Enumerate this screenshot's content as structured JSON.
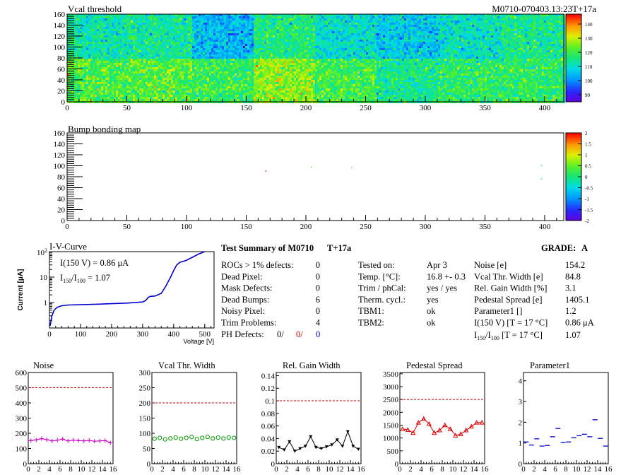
{
  "header": {
    "left_title": "Vcal threshold",
    "right_title": "M0710-070403.13:23T+17a"
  },
  "chart_data": [
    {
      "type": "heatmap",
      "title": "Vcal threshold",
      "x_ticks": [
        "0",
        "50",
        "100",
        "150",
        "200",
        "250",
        "300",
        "350",
        "400"
      ],
      "y_ticks": [
        "0",
        "20",
        "40",
        "60",
        "80",
        "100",
        "120",
        "140",
        "160"
      ],
      "xlim": [
        0,
        416
      ],
      "ylim": [
        0,
        160
      ],
      "z_ticks": [
        "90",
        "100",
        "110",
        "120",
        "130",
        "140"
      ],
      "zlim": [
        85,
        147
      ],
      "roc_means_top": [
        113,
        112,
        114,
        113,
        104,
        99,
        116,
        115,
        110,
        112,
        106,
        109,
        111,
        113,
        115,
        116
      ],
      "roc_means_bottom": [
        121,
        118,
        122,
        120,
        119,
        122,
        126,
        121,
        120,
        117,
        115,
        116,
        118,
        119,
        118,
        114
      ]
    },
    {
      "type": "heatmap",
      "title": "Bump bonding map",
      "x_ticks": [
        "0",
        "50",
        "100",
        "150",
        "200",
        "250",
        "300",
        "350",
        "400"
      ],
      "y_ticks": [
        "0",
        "20",
        "40",
        "60",
        "80",
        "100",
        "120",
        "140",
        "160"
      ],
      "xlim": [
        0,
        416
      ],
      "ylim": [
        0,
        160
      ],
      "z_ticks": [
        "-2",
        "-1.5",
        "-1",
        "-0.5",
        "0",
        "0.5",
        "1",
        "1.5",
        "2"
      ],
      "zlim": [
        -2,
        2
      ],
      "points": [
        {
          "x": 166,
          "y": 90,
          "z": 2
        },
        {
          "x": 204,
          "y": 97,
          "z": 0.3
        },
        {
          "x": 238,
          "y": 96,
          "z": 0.3
        },
        {
          "x": 397,
          "y": 100,
          "z": 0
        },
        {
          "x": 397,
          "y": 76,
          "z": -0.2
        }
      ]
    },
    {
      "type": "line",
      "title": "I-V-Curve",
      "xlabel": "Voltage [V]",
      "ylabel": "Current [μA]",
      "x_ticks": [
        "0",
        "100",
        "200",
        "300",
        "400",
        "500"
      ],
      "y_ticks": [
        "1",
        "10"
      ],
      "y_top_tick": "10",
      "y_top_exp": "2",
      "xlim": [
        0,
        530
      ],
      "ylim_log": [
        0.1,
        100
      ],
      "annotation_1": "I(150 V) = 0.86 μA",
      "annotation_2_pre": "I",
      "annotation_2_sub1": "150",
      "annotation_2_mid": "/I",
      "annotation_2_sub2": "100",
      "annotation_2_post": " =  1.07",
      "x": [
        2,
        8,
        15,
        25,
        40,
        60,
        100,
        150,
        200,
        250,
        300,
        310,
        318,
        325,
        340,
        360,
        375,
        390,
        400,
        410,
        420,
        440,
        460,
        480,
        500
      ],
      "y": [
        0.12,
        0.3,
        0.5,
        0.65,
        0.75,
        0.8,
        0.82,
        0.86,
        0.9,
        0.95,
        1.05,
        1.2,
        1.6,
        1.75,
        1.8,
        2.3,
        4.5,
        10,
        18,
        30,
        38,
        45,
        60,
        80,
        100
      ]
    },
    {
      "type": "scatter",
      "title": "Noise",
      "x_ticks": [
        "0",
        "2",
        "4",
        "6",
        "8",
        "10",
        "12",
        "14",
        "16"
      ],
      "y_ticks": [
        "0",
        "100",
        "200",
        "300",
        "400",
        "500",
        "600"
      ],
      "xlim": [
        0,
        16
      ],
      "ylim": [
        0,
        600
      ],
      "ref_line": 500,
      "color": "#cc00cc",
      "marker": "plus",
      "x": [
        0.5,
        1.5,
        2.5,
        3.5,
        4.5,
        5.5,
        6.5,
        7.5,
        8.5,
        9.5,
        10.5,
        11.5,
        12.5,
        13.5,
        14.5,
        15.5
      ],
      "y": [
        152,
        157,
        165,
        158,
        150,
        155,
        162,
        150,
        155,
        152,
        150,
        153,
        148,
        150,
        152,
        138
      ]
    },
    {
      "type": "scatter",
      "title": "Vcal Thr. Width",
      "x_ticks": [
        "0",
        "2",
        "4",
        "6",
        "8",
        "10",
        "12",
        "14",
        "16"
      ],
      "y_ticks": [
        "0",
        "50",
        "100",
        "150",
        "200",
        "250",
        "300"
      ],
      "xlim": [
        0,
        16
      ],
      "ylim": [
        0,
        300
      ],
      "ref_line": 200,
      "color": "#009900",
      "marker": "circle",
      "x": [
        0.5,
        1.5,
        2.5,
        3.5,
        4.5,
        5.5,
        6.5,
        7.5,
        8.5,
        9.5,
        10.5,
        11.5,
        12.5,
        13.5,
        14.5,
        15.5
      ],
      "y": [
        82,
        85,
        80,
        83,
        86,
        82,
        85,
        88,
        81,
        85,
        88,
        83,
        86,
        83,
        86,
        85
      ]
    },
    {
      "type": "line",
      "title": "Rel. Gain Width",
      "x_ticks": [
        "0",
        "2",
        "4",
        "6",
        "8",
        "10",
        "12",
        "14",
        "16"
      ],
      "y_ticks": [
        "0",
        "0.02",
        "0.04",
        "0.06",
        "0.08",
        "0.1",
        "0.12",
        "0.14"
      ],
      "xlim": [
        0,
        16
      ],
      "ylim": [
        0,
        0.145
      ],
      "ref_line": 0.1,
      "color": "#000000",
      "marker": "triangle-down",
      "x": [
        0.5,
        1.5,
        2.5,
        3.5,
        4.5,
        5.5,
        6.5,
        7.5,
        8.5,
        9.5,
        10.5,
        11.5,
        12.5,
        13.5,
        14.5,
        15.5
      ],
      "y": [
        0.026,
        0.022,
        0.035,
        0.02,
        0.024,
        0.028,
        0.043,
        0.026,
        0.024,
        0.027,
        0.03,
        0.038,
        0.028,
        0.051,
        0.028,
        0.023
      ]
    },
    {
      "type": "line",
      "title": "Pedestal Spread",
      "x_ticks": [
        "0",
        "500",
        "1000",
        "1500",
        "2000",
        "2500",
        "3000",
        "3500"
      ],
      "x_axis_ticks": [
        "0",
        "2",
        "4",
        "6",
        "8",
        "10",
        "12",
        "14",
        "16"
      ],
      "y_ticks": [
        "0",
        "500",
        "1000",
        "1500",
        "2000",
        "2500",
        "3000",
        "3500"
      ],
      "xlim": [
        0,
        16
      ],
      "ylim": [
        0,
        3550
      ],
      "ref_line": 2500,
      "color": "#dd0000",
      "marker": "triangle-up",
      "x": [
        0.5,
        1.5,
        2.5,
        3.5,
        4.5,
        5.5,
        6.5,
        7.5,
        8.5,
        9.5,
        10.5,
        11.5,
        12.5,
        13.5,
        14.5,
        15.5
      ],
      "y": [
        1350,
        1320,
        1200,
        1600,
        1750,
        1550,
        1200,
        1300,
        1500,
        1350,
        1100,
        1150,
        1300,
        1450,
        1600,
        1600
      ]
    },
    {
      "type": "scatter",
      "title": "Parameter1",
      "x_ticks": [
        "0",
        "2",
        "4",
        "6",
        "8",
        "10",
        "12",
        "14",
        "16"
      ],
      "y_ticks": [
        "0",
        "1",
        "2",
        "3",
        "4"
      ],
      "xlim": [
        0,
        16
      ],
      "ylim": [
        0,
        4.4
      ],
      "ref_line": null,
      "color": "#0000cc",
      "marker": "hbar",
      "x": [
        0.5,
        1.5,
        2.5,
        3.5,
        4.5,
        5.5,
        6.5,
        7.5,
        8.5,
        9.5,
        10.5,
        11.5,
        12.5,
        13.5,
        14.5,
        15.5
      ],
      "y": [
        1.05,
        0.9,
        1.2,
        0.85,
        0.88,
        1.3,
        1.7,
        1.02,
        1.05,
        1.25,
        1.35,
        1.42,
        1.3,
        2.12,
        1.22,
        0.85
      ]
    }
  ],
  "summary": {
    "title": "Test Summary of M0710",
    "tag": "T+17a",
    "grade_label": "GRADE:",
    "grade": "A",
    "left_rows": [
      {
        "label": "ROCs > 1% defects:",
        "value": "0"
      },
      {
        "label": "Dead Pixel:",
        "value": "0"
      },
      {
        "label": "Mask Defects:",
        "value": "0"
      },
      {
        "label": "Dead Bumps:",
        "value": "6"
      },
      {
        "label": "Noisy Pixel:",
        "value": "0"
      },
      {
        "label": "Trim Problems:",
        "value": "4"
      }
    ],
    "ph_label": "PH Defects:",
    "ph_values": [
      "0/",
      "0/",
      "0"
    ],
    "middle_rows": [
      {
        "label": "Tested on:",
        "value": "Apr 3"
      },
      {
        "label": "Temp. [°C]:",
        "value": "16.8 +- 0.3"
      },
      {
        "label": "Trim / phCal:",
        "value": "yes / yes"
      },
      {
        "label": "Therm. cycl.:",
        "value": "yes"
      },
      {
        "label": "TBM1:",
        "value": "ok"
      },
      {
        "label": "TBM2:",
        "value": "ok"
      }
    ],
    "right_rows": [
      {
        "label": "Noise [e]",
        "value": "154.2"
      },
      {
        "label": "Vcal Thr. Width [e]",
        "value": "84.8"
      },
      {
        "label": "Rel. Gain Width [%]",
        "value": "3.1"
      },
      {
        "label": "Pedestal Spread [e]",
        "value": "1405.1"
      },
      {
        "label": "Parameter1 []",
        "value": "1.2"
      },
      {
        "label": "I(150 V) [T = 17 °C]",
        "value": "0.86 μA"
      }
    ],
    "ratio_label_pre": "I",
    "ratio_label_sub1": "150",
    "ratio_label_mid": "/I",
    "ratio_label_sub2": "100",
    "ratio_label_post": "  [T = 17 °C]",
    "ratio_value": "1.07"
  }
}
